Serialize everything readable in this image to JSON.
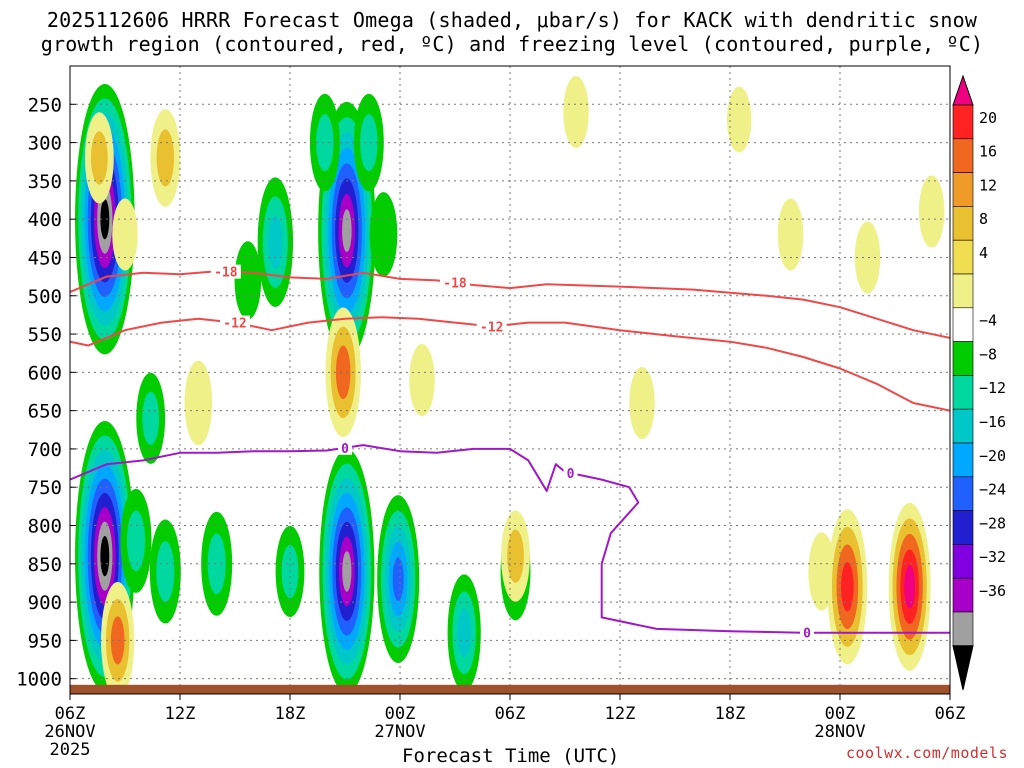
{
  "chart_data": {
    "type": "heatmap",
    "title_line1": "2025112606 HRRR Forecast Omega (shaded, μbar/s) for KACK with dendritic snow",
    "title_line2": "growth region (contoured, red, ºC) and freezing level (contoured, purple, ºC)",
    "xlabel": "Forecast Time (UTC)",
    "x_range_hours": [
      0,
      48
    ],
    "x_ticks": [
      {
        "hour": 0,
        "label": "06Z",
        "day": "26NOV",
        "year": "2025"
      },
      {
        "hour": 6,
        "label": "12Z"
      },
      {
        "hour": 12,
        "label": "18Z"
      },
      {
        "hour": 18,
        "label": "00Z",
        "day": "27NOV"
      },
      {
        "hour": 24,
        "label": "06Z"
      },
      {
        "hour": 30,
        "label": "12Z"
      },
      {
        "hour": 36,
        "label": "18Z"
      },
      {
        "hour": 42,
        "label": "00Z",
        "day": "28NOV"
      },
      {
        "hour": 48,
        "label": "06Z"
      }
    ],
    "y_ticks": [
      250,
      300,
      350,
      400,
      450,
      500,
      550,
      600,
      650,
      700,
      750,
      800,
      850,
      900,
      950,
      1000
    ],
    "y_range_hpa": [
      1020,
      200
    ],
    "surface_pressure_hpa": 1008,
    "colorbar_labels": [
      "20",
      "16",
      "12",
      "8",
      "4",
      "−4",
      "−8",
      "−12",
      "−16",
      "−20",
      "−24",
      "−28",
      "−32",
      "−36"
    ],
    "colorbar_colors": [
      "#ee0080",
      "#ff2222",
      "#f06820",
      "#f09a28",
      "#e8c030",
      "#f0dd50",
      "#f0f088",
      "#ffffff",
      "#00cc00",
      "#00d8a0",
      "#00c8c8",
      "#00a8ff",
      "#2060ff",
      "#2020d0",
      "#8000e0",
      "#a800c8",
      "#a0a0a0",
      "#000000"
    ],
    "omega_blobs": [
      {
        "x": 1.9,
        "y": 400,
        "v": -36
      },
      {
        "x": 1.9,
        "y": 840,
        "v": -36
      },
      {
        "x": 15.1,
        "y": 415,
        "v": -34
      },
      {
        "x": 15.1,
        "y": 860,
        "v": -32
      },
      {
        "x": 13.9,
        "y": 300,
        "v": -9
      },
      {
        "x": 16.3,
        "y": 300,
        "v": -9
      },
      {
        "x": 17.1,
        "y": 420,
        "v": -7
      },
      {
        "x": 11.2,
        "y": 430,
        "v": -14
      },
      {
        "x": 9.7,
        "y": 480,
        "v": -6
      },
      {
        "x": 4.4,
        "y": 660,
        "v": -8
      },
      {
        "x": 17.9,
        "y": 870,
        "v": -20
      },
      {
        "x": 21.5,
        "y": 940,
        "v": -12
      },
      {
        "x": 24.3,
        "y": 860,
        "v": -9
      },
      {
        "x": 3.6,
        "y": 820,
        "v": -10
      },
      {
        "x": 5.2,
        "y": 860,
        "v": -10
      },
      {
        "x": 8.0,
        "y": 850,
        "v": -10
      },
      {
        "x": 12.0,
        "y": 860,
        "v": -8
      },
      {
        "x": 2.6,
        "y": 950,
        "v": 12
      },
      {
        "x": 1.6,
        "y": 320,
        "v": 8
      },
      {
        "x": 5.2,
        "y": 320,
        "v": 9
      },
      {
        "x": 3.0,
        "y": 420,
        "v": 5
      },
      {
        "x": 7.0,
        "y": 640,
        "v": 7
      },
      {
        "x": 14.9,
        "y": 600,
        "v": 14
      },
      {
        "x": 19.2,
        "y": 610,
        "v": 5
      },
      {
        "x": 24.3,
        "y": 840,
        "v": 8
      },
      {
        "x": 27.6,
        "y": 260,
        "v": 5
      },
      {
        "x": 36.5,
        "y": 270,
        "v": 4
      },
      {
        "x": 39.3,
        "y": 420,
        "v": 5
      },
      {
        "x": 43.5,
        "y": 450,
        "v": 5
      },
      {
        "x": 47.0,
        "y": 390,
        "v": 5
      },
      {
        "x": 41.0,
        "y": 860,
        "v": 6
      },
      {
        "x": 42.4,
        "y": 880,
        "v": 18
      },
      {
        "x": 45.8,
        "y": 880,
        "v": 20
      },
      {
        "x": 31.2,
        "y": 640,
        "v": 5
      }
    ],
    "contours": {
      "isotherm_minus18": {
        "label": "-18",
        "label_positions": [
          8.5,
          21.0
        ],
        "points": [
          [
            0,
            495
          ],
          [
            2,
            475
          ],
          [
            4,
            470
          ],
          [
            6,
            472
          ],
          [
            8,
            468
          ],
          [
            10,
            470
          ],
          [
            12,
            476
          ],
          [
            14,
            478
          ],
          [
            16,
            470
          ],
          [
            18,
            478
          ],
          [
            20,
            480
          ],
          [
            22,
            486
          ],
          [
            24,
            490
          ],
          [
            26,
            485
          ],
          [
            30,
            488
          ],
          [
            34,
            492
          ],
          [
            38,
            500
          ],
          [
            40,
            505
          ],
          [
            42,
            515
          ],
          [
            44,
            530
          ],
          [
            46,
            545
          ],
          [
            48,
            555
          ]
        ]
      },
      "isotherm_minus12": {
        "label": "-12",
        "label_positions": [
          9.0,
          23.0
        ],
        "points": [
          [
            0,
            560
          ],
          [
            1,
            565
          ],
          [
            3,
            545
          ],
          [
            5,
            535
          ],
          [
            7,
            530
          ],
          [
            9,
            535
          ],
          [
            11,
            545
          ],
          [
            13,
            535
          ],
          [
            15,
            530
          ],
          [
            17,
            528
          ],
          [
            19,
            530
          ],
          [
            21,
            535
          ],
          [
            23,
            540
          ],
          [
            25,
            535
          ],
          [
            27,
            535
          ],
          [
            30,
            545
          ],
          [
            33,
            553
          ],
          [
            36,
            560
          ],
          [
            38,
            568
          ],
          [
            40,
            580
          ],
          [
            42,
            595
          ],
          [
            44,
            615
          ],
          [
            46,
            640
          ],
          [
            48,
            650
          ]
        ]
      },
      "freezing_level_0C": {
        "label": "0",
        "label_positions": [
          15.0,
          27.3,
          40.2
        ],
        "points": [
          [
            0,
            740
          ],
          [
            2,
            720
          ],
          [
            4,
            715
          ],
          [
            6,
            705
          ],
          [
            8,
            705
          ],
          [
            10,
            703
          ],
          [
            12,
            703
          ],
          [
            14,
            702
          ],
          [
            16,
            695
          ],
          [
            18,
            703
          ],
          [
            20,
            705
          ],
          [
            22,
            700
          ],
          [
            24,
            700
          ],
          [
            25,
            715
          ],
          [
            25.5,
            735
          ],
          [
            26,
            755
          ],
          [
            26.5,
            720
          ],
          [
            27,
            730
          ],
          [
            29,
            740
          ],
          [
            30.5,
            750
          ],
          [
            31,
            770
          ],
          [
            29.5,
            810
          ],
          [
            29.0,
            850
          ],
          [
            29.0,
            920
          ],
          [
            32,
            935
          ],
          [
            36,
            938
          ],
          [
            40,
            940
          ],
          [
            44,
            940
          ],
          [
            48,
            940
          ]
        ]
      }
    }
  },
  "credit": "coolwx.com/models"
}
